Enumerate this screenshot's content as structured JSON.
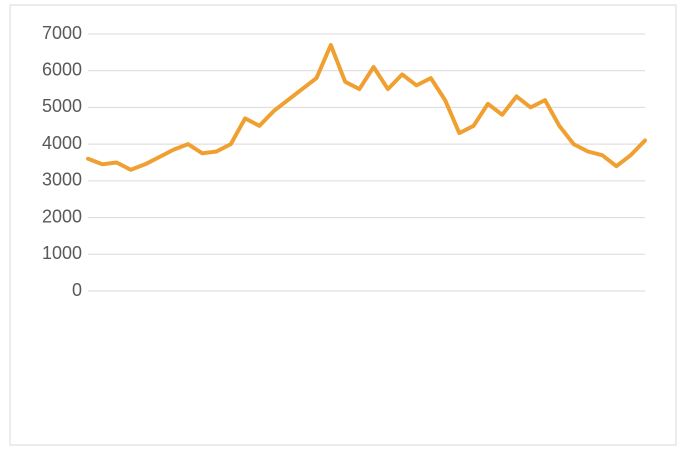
{
  "chart_data": {
    "type": "line",
    "categories": [
      null,
      null,
      null,
      null,
      null,
      null,
      null,
      null,
      null,
      null,
      null,
      null,
      null,
      null,
      null,
      null,
      null,
      null,
      null,
      null,
      null,
      null,
      null,
      null,
      null,
      null,
      null,
      null,
      null,
      null,
      null,
      null,
      null,
      null,
      null,
      null,
      null,
      null,
      null,
      null
    ],
    "series": [
      {
        "color": "#f0a030",
        "values": [
          3600,
          3450,
          3500,
          3300,
          3450,
          3650,
          3850,
          4000,
          3750,
          3800,
          4000,
          4700,
          4500,
          4900,
          5200,
          5500,
          5800,
          6700,
          5700,
          5500,
          6100,
          5500,
          5900,
          5600,
          5800,
          5200,
          4300,
          4500,
          5100,
          4800,
          5300,
          5000,
          5200,
          4500,
          4000,
          3800,
          3700,
          3400,
          3700,
          4100
        ]
      }
    ],
    "ylim": [
      0,
      7000
    ],
    "yticks": [
      0,
      1000,
      2000,
      3000,
      4000,
      5000,
      6000,
      7000
    ],
    "grid": true
  }
}
